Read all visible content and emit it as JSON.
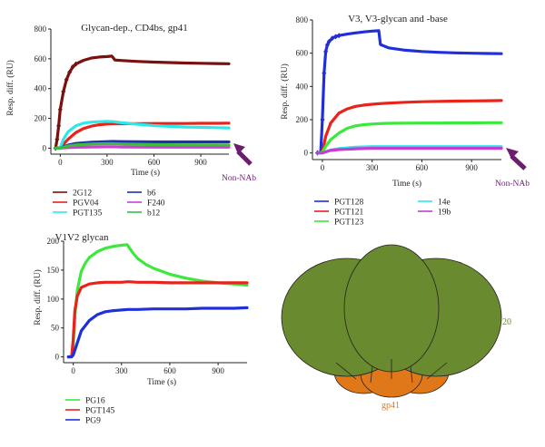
{
  "chart_data": [
    {
      "type": "line",
      "title": "Glycan-dep., CD4bs, gp41",
      "xlabel": "Time (s)",
      "ylabel": "Resp. diff. (RU)",
      "xlim": [
        -60,
        1080
      ],
      "ylim": [
        -40,
        800
      ],
      "xticks": [
        0,
        300,
        600,
        900
      ],
      "yticks": [
        0,
        200,
        400,
        600,
        800
      ],
      "annotation": "Non-NAb",
      "legend_placement": "bottom",
      "series": [
        {
          "name": "2G12",
          "color": "#7a1010",
          "marker": "diamond",
          "x": [
            -30,
            -20,
            -10,
            0,
            20,
            40,
            60,
            80,
            100,
            150,
            200,
            250,
            300,
            330,
            340,
            350,
            400,
            500,
            600,
            700,
            800,
            900,
            1000,
            1080
          ],
          "y": [
            0,
            60,
            150,
            260,
            380,
            460,
            510,
            545,
            565,
            590,
            605,
            612,
            615,
            618,
            606,
            592,
            588,
            582,
            578,
            575,
            572,
            570,
            568,
            567
          ]
        },
        {
          "name": "PGV04",
          "color": "#e8231c",
          "x": [
            -30,
            0,
            20,
            50,
            100,
            150,
            200,
            250,
            300,
            340,
            400,
            500,
            600,
            700,
            800,
            900,
            1000,
            1080
          ],
          "y": [
            0,
            2,
            25,
            60,
            105,
            132,
            148,
            157,
            162,
            164,
            164,
            165,
            166,
            166,
            166,
            167,
            167,
            168
          ]
        },
        {
          "name": "PGT135",
          "color": "#2ee8e8",
          "x": [
            -30,
            0,
            20,
            50,
            100,
            150,
            200,
            250,
            300,
            340,
            400,
            500,
            600,
            700,
            800,
            900,
            1000,
            1080
          ],
          "y": [
            0,
            3,
            60,
            110,
            150,
            168,
            175,
            178,
            180,
            178,
            170,
            160,
            152,
            146,
            142,
            140,
            138,
            136
          ]
        },
        {
          "name": "b6",
          "color": "#1f2fb4",
          "x": [
            -30,
            0,
            50,
            100,
            200,
            300,
            340,
            400,
            600,
            800,
            1000,
            1080
          ],
          "y": [
            0,
            0,
            20,
            32,
            40,
            44,
            45,
            44,
            42,
            42,
            42,
            42
          ]
        },
        {
          "name": "F240",
          "color": "#d43cd4",
          "x": [
            -30,
            0,
            50,
            100,
            200,
            300,
            340,
            400,
            600,
            800,
            1000,
            1080
          ],
          "y": [
            0,
            0,
            4,
            6,
            8,
            9,
            9,
            8,
            7,
            7,
            7,
            7
          ]
        },
        {
          "name": "b12",
          "color": "#3bbd3b",
          "x": [
            -30,
            0,
            50,
            100,
            200,
            300,
            340,
            400,
            600,
            800,
            1000,
            1080
          ],
          "y": [
            0,
            0,
            14,
            22,
            28,
            30,
            30,
            28,
            24,
            22,
            21,
            20
          ]
        }
      ]
    },
    {
      "type": "line",
      "title": "V3, V3-glycan and -base",
      "xlabel": "Time (s)",
      "ylabel": "Resp. diff. (RU)",
      "xlim": [
        -60,
        1080
      ],
      "ylim": [
        -40,
        800
      ],
      "xticks": [
        0,
        300,
        600,
        900
      ],
      "yticks": [
        0,
        200,
        400,
        600,
        800
      ],
      "annotation": "Non-NAb",
      "legend_placement": "bottom",
      "series": [
        {
          "name": "PGT128",
          "color": "#1f2fd9",
          "marker": "diamond",
          "x": [
            -30,
            -10,
            0,
            10,
            20,
            30,
            40,
            60,
            80,
            100,
            150,
            200,
            250,
            300,
            340,
            350,
            400,
            500,
            600,
            700,
            800,
            900,
            1000,
            1080
          ],
          "y": [
            0,
            5,
            200,
            480,
            610,
            650,
            670,
            690,
            700,
            706,
            715,
            722,
            728,
            733,
            735,
            652,
            632,
            618,
            610,
            605,
            602,
            600,
            598,
            597
          ]
        },
        {
          "name": "PGT121",
          "color": "#e8231c",
          "x": [
            -30,
            0,
            20,
            50,
            100,
            150,
            200,
            250,
            300,
            340,
            400,
            500,
            600,
            700,
            800,
            900,
            1000,
            1080
          ],
          "y": [
            0,
            5,
            100,
            180,
            240,
            265,
            280,
            288,
            293,
            296,
            300,
            305,
            308,
            310,
            312,
            313,
            314,
            315
          ]
        },
        {
          "name": "PGT123",
          "color": "#3be83b",
          "x": [
            -30,
            0,
            20,
            50,
            100,
            150,
            200,
            250,
            300,
            340,
            400,
            500,
            600,
            700,
            800,
            900,
            1000,
            1080
          ],
          "y": [
            0,
            5,
            40,
            80,
            120,
            148,
            163,
            170,
            174,
            176,
            178,
            179,
            180,
            180,
            181,
            181,
            182,
            182
          ]
        },
        {
          "name": "14e",
          "color": "#2ee8e8",
          "x": [
            -30,
            0,
            50,
            100,
            200,
            300,
            340,
            400,
            600,
            800,
            1000,
            1080
          ],
          "y": [
            0,
            0,
            18,
            26,
            34,
            38,
            38,
            38,
            38,
            38,
            38,
            38
          ]
        },
        {
          "name": "19b",
          "color": "#c83cd4",
          "x": [
            -30,
            0,
            50,
            100,
            200,
            300,
            340,
            400,
            600,
            800,
            1000,
            1080
          ],
          "y": [
            0,
            0,
            15,
            20,
            25,
            28,
            28,
            28,
            28,
            28,
            28,
            28
          ]
        }
      ]
    },
    {
      "type": "line",
      "title": "V1V2 glycan",
      "xlabel": "Time (s)",
      "ylabel": "Resp. diff. (RU)",
      "xlim": [
        -60,
        1080
      ],
      "ylim": [
        -10,
        200
      ],
      "xticks": [
        0,
        300,
        600,
        900
      ],
      "yticks": [
        0,
        50,
        100,
        150,
        200
      ],
      "legend_placement": "bottom",
      "series": [
        {
          "name": "PG16",
          "color": "#3be83b",
          "x": [
            -30,
            -10,
            0,
            10,
            25,
            50,
            75,
            100,
            150,
            200,
            250,
            300,
            335,
            350,
            375,
            400,
            450,
            500,
            600,
            700,
            800,
            900,
            1000,
            1080
          ],
          "y": [
            0,
            2,
            20,
            70,
            115,
            148,
            162,
            172,
            182,
            188,
            191,
            193,
            194,
            188,
            178,
            170,
            160,
            153,
            143,
            136,
            131,
            128,
            126,
            124
          ]
        },
        {
          "name": "PGT145",
          "color": "#e8231c",
          "x": [
            -30,
            -10,
            0,
            10,
            25,
            50,
            100,
            150,
            200,
            300,
            340,
            400,
            500,
            600,
            700,
            800,
            900,
            1000,
            1080
          ],
          "y": [
            0,
            1,
            30,
            80,
            105,
            120,
            126,
            128,
            129,
            129,
            130,
            129,
            129,
            128,
            128,
            128,
            128,
            128,
            128
          ]
        },
        {
          "name": "PG9",
          "color": "#1f2fd9",
          "x": [
            -30,
            -10,
            0,
            20,
            50,
            100,
            150,
            200,
            250,
            300,
            340,
            400,
            500,
            600,
            700,
            800,
            900,
            1000,
            1080
          ],
          "y": [
            0,
            0,
            3,
            20,
            45,
            63,
            73,
            78,
            80,
            81,
            82,
            82,
            83,
            83,
            83,
            84,
            84,
            84,
            85
          ]
        }
      ]
    }
  ],
  "diagram": {
    "gp120_label": "gp120",
    "gp41_label": "gp41",
    "gp120_color": "#6a8a2f",
    "gp41_color": "#e0781a"
  }
}
